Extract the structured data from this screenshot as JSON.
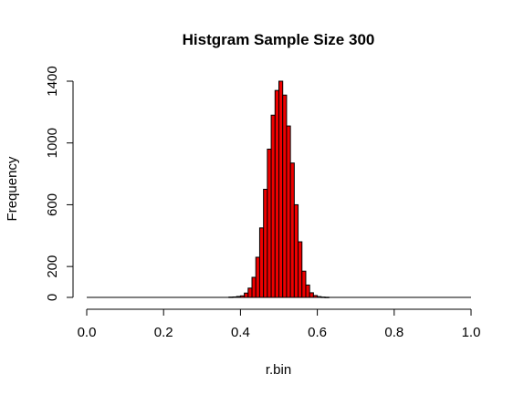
{
  "chart_data": {
    "type": "bar",
    "title": "Histgram Sample Size 300",
    "xlabel": "r.bin",
    "ylabel": "Frequency",
    "xlim": [
      0.0,
      1.0
    ],
    "ylim": [
      0,
      1400
    ],
    "x_ticks": [
      "0.0",
      "0.2",
      "0.4",
      "0.6",
      "0.8",
      "1.0"
    ],
    "y_ticks": [
      "0",
      "200",
      "600",
      "1000",
      "1400"
    ],
    "grid": false,
    "bar_color": "#ee0000",
    "bin_width": 0.01,
    "x": [
      0.37,
      0.38,
      0.39,
      0.4,
      0.41,
      0.42,
      0.43,
      0.44,
      0.45,
      0.46,
      0.47,
      0.48,
      0.49,
      0.5,
      0.51,
      0.52,
      0.53,
      0.54,
      0.55,
      0.56,
      0.57,
      0.58,
      0.59,
      0.6,
      0.61,
      0.62
    ],
    "values": [
      2,
      3,
      6,
      10,
      28,
      60,
      130,
      260,
      450,
      700,
      960,
      1180,
      1340,
      1400,
      1310,
      1110,
      870,
      600,
      360,
      170,
      80,
      30,
      12,
      5,
      2,
      1
    ]
  }
}
